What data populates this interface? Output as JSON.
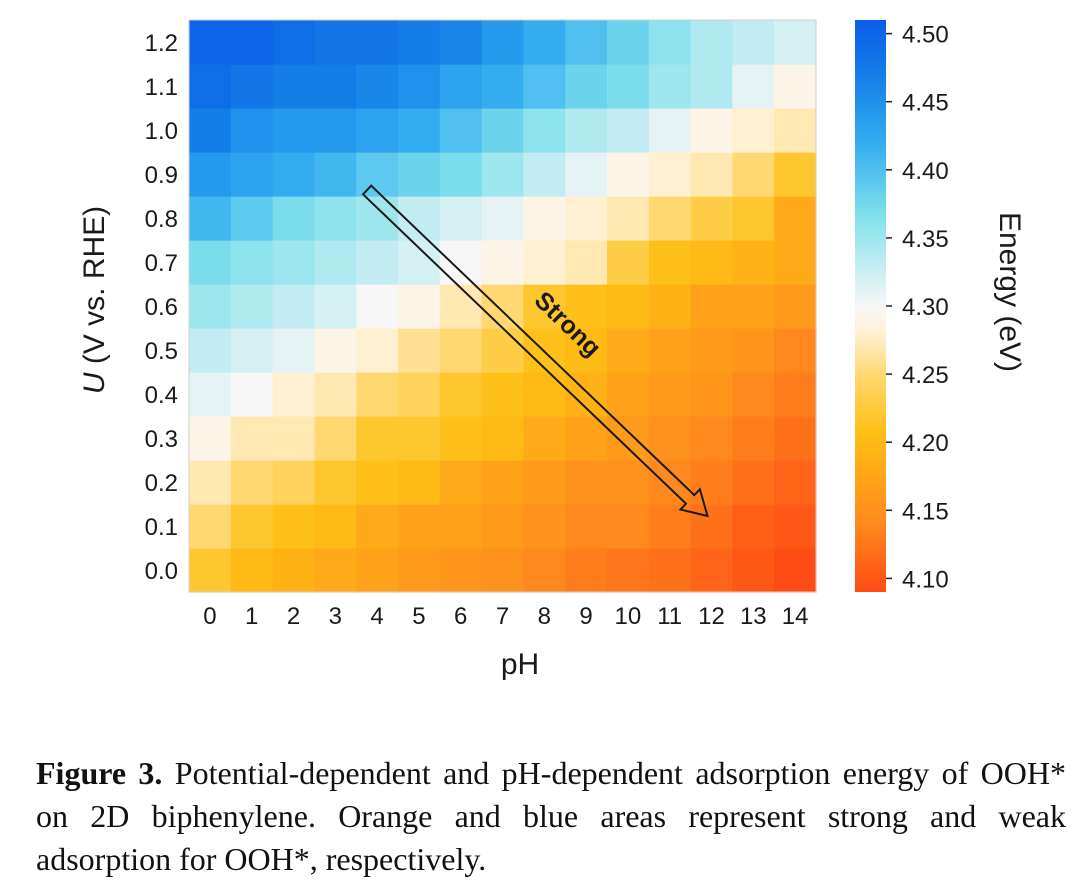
{
  "figure": {
    "caption_label": "Figure 3.",
    "caption_text": " Potential-dependent and pH-dependent adsorption energy of OOH* on 2D biphenylene. Orange and blue areas represent strong and weak adsorption for OOH*, respectively."
  },
  "chart_data": {
    "type": "heatmap",
    "title": "",
    "xlabel": "pH",
    "ylabel_italic": "U",
    "ylabel_rest": " (V vs. RHE)",
    "x_ticks": [
      "0",
      "1",
      "2",
      "3",
      "4",
      "5",
      "6",
      "7",
      "8",
      "9",
      "10",
      "11",
      "12",
      "13",
      "14"
    ],
    "y_ticks": [
      "0.0",
      "0.1",
      "0.2",
      "0.3",
      "0.4",
      "0.5",
      "0.6",
      "0.7",
      "0.8",
      "0.9",
      "1.0",
      "1.1",
      "1.2"
    ],
    "colorbar": {
      "label": "Energy (eV)",
      "ticks": [
        "4.10",
        "4.15",
        "4.20",
        "4.25",
        "4.30",
        "4.35",
        "4.40",
        "4.45",
        "4.50"
      ],
      "min": 4.09,
      "max": 4.51
    },
    "annotation": {
      "text": "Strong",
      "arrow_from": {
        "pH": 4,
        "U": 0.85
      },
      "arrow_to": {
        "pH": 12,
        "U": 0.1
      }
    },
    "values_rows_U_0_to_1_2": [
      [
        4.22,
        4.2,
        4.19,
        4.18,
        4.17,
        4.16,
        4.155,
        4.15,
        4.14,
        4.13,
        4.125,
        4.12,
        4.11,
        4.1,
        4.09
      ],
      [
        4.25,
        4.22,
        4.21,
        4.2,
        4.18,
        4.17,
        4.17,
        4.16,
        4.15,
        4.14,
        4.14,
        4.13,
        4.12,
        4.105,
        4.1
      ],
      [
        4.27,
        4.25,
        4.24,
        4.22,
        4.21,
        4.2,
        4.18,
        4.17,
        4.16,
        4.15,
        4.15,
        4.14,
        4.13,
        4.12,
        4.11
      ],
      [
        4.29,
        4.27,
        4.27,
        4.25,
        4.22,
        4.22,
        4.21,
        4.2,
        4.18,
        4.17,
        4.16,
        4.15,
        4.14,
        4.13,
        4.12
      ],
      [
        4.31,
        4.3,
        4.28,
        4.27,
        4.25,
        4.24,
        4.22,
        4.21,
        4.2,
        4.19,
        4.17,
        4.16,
        4.155,
        4.14,
        4.13
      ],
      [
        4.33,
        4.32,
        4.31,
        4.29,
        4.28,
        4.26,
        4.25,
        4.23,
        4.21,
        4.2,
        4.18,
        4.17,
        4.16,
        4.155,
        4.14
      ],
      [
        4.35,
        4.34,
        4.33,
        4.32,
        4.3,
        4.29,
        4.27,
        4.25,
        4.22,
        4.21,
        4.2,
        4.19,
        4.17,
        4.17,
        4.16
      ],
      [
        4.37,
        4.36,
        4.35,
        4.34,
        4.33,
        4.32,
        4.3,
        4.29,
        4.28,
        4.27,
        4.23,
        4.21,
        4.2,
        4.19,
        4.18
      ],
      [
        4.41,
        4.39,
        4.37,
        4.36,
        4.35,
        4.33,
        4.32,
        4.31,
        4.29,
        4.28,
        4.27,
        4.25,
        4.23,
        4.22,
        4.18
      ],
      [
        4.44,
        4.43,
        4.42,
        4.41,
        4.39,
        4.38,
        4.37,
        4.35,
        4.33,
        4.31,
        4.29,
        4.28,
        4.27,
        4.25,
        4.22
      ],
      [
        4.47,
        4.45,
        4.44,
        4.44,
        4.43,
        4.42,
        4.4,
        4.38,
        4.36,
        4.34,
        4.33,
        4.31,
        4.29,
        4.28,
        4.27
      ],
      [
        4.49,
        4.48,
        4.47,
        4.47,
        4.46,
        4.45,
        4.43,
        4.42,
        4.4,
        4.38,
        4.37,
        4.35,
        4.34,
        4.31,
        4.29
      ],
      [
        4.5,
        4.5,
        4.49,
        4.48,
        4.48,
        4.47,
        4.46,
        4.44,
        4.42,
        4.4,
        4.38,
        4.36,
        4.34,
        4.33,
        4.32
      ]
    ]
  }
}
